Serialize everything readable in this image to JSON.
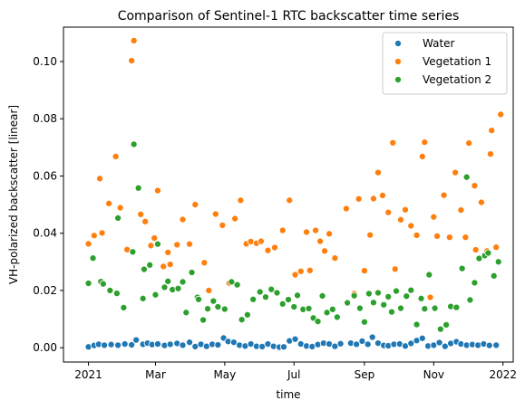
{
  "chart_data": {
    "type": "scatter",
    "title": "Comparison of Sentinel-1 RTC backscatter time series",
    "xlabel": "time",
    "ylabel": "VH-polarized backscatter [linear]",
    "xlim": [
      "2020-12-10",
      "2022-01-10"
    ],
    "ylim": [
      -0.005,
      0.112
    ],
    "x_ticks": [
      {
        "date": "2021-01-01",
        "label": "2021"
      },
      {
        "date": "2021-03-01",
        "label": "Mar"
      },
      {
        "date": "2021-05-01",
        "label": "May"
      },
      {
        "date": "2021-07-01",
        "label": "Jul"
      },
      {
        "date": "2021-09-01",
        "label": "Sep"
      },
      {
        "date": "2021-11-01",
        "label": "Nov"
      },
      {
        "date": "2022-01-01",
        "label": "2022"
      }
    ],
    "y_ticks": [
      {
        "value": 0.0,
        "label": "0.00"
      },
      {
        "value": 0.02,
        "label": "0.02"
      },
      {
        "value": 0.04,
        "label": "0.04"
      },
      {
        "value": 0.06,
        "label": "0.06"
      },
      {
        "value": 0.08,
        "label": "0.08"
      },
      {
        "value": 0.1,
        "label": "0.10"
      }
    ],
    "grid": false,
    "legend_position": "top-right",
    "series": [
      {
        "name": "Water",
        "color": "#1f77b4",
        "points": [
          [
            "2021-01-01",
            0.0003
          ],
          [
            "2021-01-06",
            0.0008
          ],
          [
            "2021-01-10",
            0.0012
          ],
          [
            "2021-01-15",
            0.0009
          ],
          [
            "2021-01-21",
            0.0011
          ],
          [
            "2021-01-27",
            0.0009
          ],
          [
            "2021-02-02",
            0.0013
          ],
          [
            "2021-02-08",
            0.001
          ],
          [
            "2021-02-12",
            0.0027
          ],
          [
            "2021-02-18",
            0.0012
          ],
          [
            "2021-02-22",
            0.0016
          ],
          [
            "2021-02-26",
            0.0011
          ],
          [
            "2021-03-03",
            0.0013
          ],
          [
            "2021-03-09",
            0.0008
          ],
          [
            "2021-03-14",
            0.0012
          ],
          [
            "2021-03-20",
            0.0015
          ],
          [
            "2021-03-25",
            0.0009
          ],
          [
            "2021-03-31",
            0.0019
          ],
          [
            "2021-04-05",
            0.0004
          ],
          [
            "2021-04-10",
            0.0012
          ],
          [
            "2021-04-15",
            0.0005
          ],
          [
            "2021-04-20",
            0.0012
          ],
          [
            "2021-04-25",
            0.001
          ],
          [
            "2021-04-30",
            0.0034
          ],
          [
            "2021-05-04",
            0.0022
          ],
          [
            "2021-05-09",
            0.0019
          ],
          [
            "2021-05-14",
            0.0009
          ],
          [
            "2021-05-19",
            0.0006
          ],
          [
            "2021-05-24",
            0.0013
          ],
          [
            "2021-05-29",
            0.0005
          ],
          [
            "2021-06-03",
            0.0004
          ],
          [
            "2021-06-08",
            0.0013
          ],
          [
            "2021-06-13",
            0.0005
          ],
          [
            "2021-06-18",
            0.0002
          ],
          [
            "2021-06-22",
            0.0003
          ],
          [
            "2021-06-27",
            0.0024
          ],
          [
            "2021-07-02",
            0.003
          ],
          [
            "2021-07-07",
            0.0013
          ],
          [
            "2021-07-12",
            0.0006
          ],
          [
            "2021-07-17",
            0.0004
          ],
          [
            "2021-07-22",
            0.0011
          ],
          [
            "2021-07-27",
            0.0016
          ],
          [
            "2021-08-01",
            0.0013
          ],
          [
            "2021-08-06",
            0.0005
          ],
          [
            "2021-08-11",
            0.0014
          ],
          [
            "2021-08-20",
            0.0016
          ],
          [
            "2021-08-25",
            0.0012
          ],
          [
            "2021-08-30",
            0.0023
          ],
          [
            "2021-09-04",
            0.0012
          ],
          [
            "2021-09-08",
            0.0037
          ],
          [
            "2021-09-13",
            0.0016
          ],
          [
            "2021-09-18",
            0.0008
          ],
          [
            "2021-09-22",
            0.0007
          ],
          [
            "2021-09-27",
            0.0012
          ],
          [
            "2021-10-02",
            0.0013
          ],
          [
            "2021-10-07",
            0.0006
          ],
          [
            "2021-10-12",
            0.0015
          ],
          [
            "2021-10-17",
            0.0025
          ],
          [
            "2021-10-22",
            0.0033
          ],
          [
            "2021-10-27",
            0.0006
          ],
          [
            "2021-11-01",
            0.0009
          ],
          [
            "2021-11-06",
            0.0018
          ],
          [
            "2021-11-11",
            0.0005
          ],
          [
            "2021-11-16",
            0.0015
          ],
          [
            "2021-11-21",
            0.0021
          ],
          [
            "2021-11-25",
            0.0013
          ],
          [
            "2021-11-30",
            0.0009
          ],
          [
            "2021-12-05",
            0.0011
          ],
          [
            "2021-12-10",
            0.0009
          ],
          [
            "2021-12-15",
            0.0013
          ],
          [
            "2021-12-20",
            0.0008
          ],
          [
            "2021-12-26",
            0.0009
          ]
        ]
      },
      {
        "name": "Vegetation 1",
        "color": "#ff7f0e",
        "points": [
          [
            "2021-01-01",
            0.0363
          ],
          [
            "2021-01-06",
            0.0392
          ],
          [
            "2021-01-11",
            0.0591
          ],
          [
            "2021-01-13",
            0.0401
          ],
          [
            "2021-01-19",
            0.0504
          ],
          [
            "2021-01-25",
            0.0668
          ],
          [
            "2021-01-29",
            0.0489
          ],
          [
            "2021-02-04",
            0.0343
          ],
          [
            "2021-02-08",
            0.1003
          ],
          [
            "2021-02-10",
            0.1073
          ],
          [
            "2021-02-16",
            0.0466
          ],
          [
            "2021-02-20",
            0.0441
          ],
          [
            "2021-02-25",
            0.0357
          ],
          [
            "2021-02-28",
            0.0383
          ],
          [
            "2021-03-03",
            0.0549
          ],
          [
            "2021-03-08",
            0.0284
          ],
          [
            "2021-03-12",
            0.0333
          ],
          [
            "2021-03-14",
            0.0291
          ],
          [
            "2021-03-20",
            0.036
          ],
          [
            "2021-03-25",
            0.0448
          ],
          [
            "2021-03-31",
            0.0362
          ],
          [
            "2021-04-05",
            0.05
          ],
          [
            "2021-04-13",
            0.0297
          ],
          [
            "2021-04-17",
            0.02
          ],
          [
            "2021-04-23",
            0.0467
          ],
          [
            "2021-04-29",
            0.0428
          ],
          [
            "2021-05-05",
            0.0226
          ],
          [
            "2021-05-10",
            0.0451
          ],
          [
            "2021-05-15",
            0.0515
          ],
          [
            "2021-05-20",
            0.0363
          ],
          [
            "2021-05-24",
            0.0371
          ],
          [
            "2021-05-29",
            0.0365
          ],
          [
            "2021-06-02",
            0.0372
          ],
          [
            "2021-06-08",
            0.034
          ],
          [
            "2021-06-14",
            0.035
          ],
          [
            "2021-06-21",
            0.041
          ],
          [
            "2021-06-27",
            0.0515
          ],
          [
            "2021-07-02",
            0.0255
          ],
          [
            "2021-07-07",
            0.0267
          ],
          [
            "2021-07-12",
            0.0404
          ],
          [
            "2021-07-15",
            0.027
          ],
          [
            "2021-07-20",
            0.041
          ],
          [
            "2021-07-24",
            0.0372
          ],
          [
            "2021-07-28",
            0.0338
          ],
          [
            "2021-08-01",
            0.0398
          ],
          [
            "2021-08-06",
            0.0313
          ],
          [
            "2021-08-16",
            0.0486
          ],
          [
            "2021-08-23",
            0.0189
          ],
          [
            "2021-08-27",
            0.052
          ],
          [
            "2021-09-01",
            0.0269
          ],
          [
            "2021-09-06",
            0.0394
          ],
          [
            "2021-09-09",
            0.0521
          ],
          [
            "2021-09-13",
            0.0612
          ],
          [
            "2021-09-17",
            0.0532
          ],
          [
            "2021-09-22",
            0.0473
          ],
          [
            "2021-09-26",
            0.0716
          ],
          [
            "2021-09-28",
            0.0275
          ],
          [
            "2021-10-03",
            0.0447
          ],
          [
            "2021-10-07",
            0.0482
          ],
          [
            "2021-10-12",
            0.0426
          ],
          [
            "2021-10-17",
            0.0393
          ],
          [
            "2021-10-22",
            0.0668
          ],
          [
            "2021-10-24",
            0.0718
          ],
          [
            "2021-10-29",
            0.0176
          ],
          [
            "2021-11-01",
            0.0457
          ],
          [
            "2021-11-04",
            0.039
          ],
          [
            "2021-11-10",
            0.0533
          ],
          [
            "2021-11-15",
            0.0386
          ],
          [
            "2021-11-20",
            0.0612
          ],
          [
            "2021-11-25",
            0.0481
          ],
          [
            "2021-11-29",
            0.0386
          ],
          [
            "2021-12-02",
            0.0715
          ],
          [
            "2021-12-07",
            0.0566
          ],
          [
            "2021-12-08",
            0.0342
          ],
          [
            "2021-12-13",
            0.0508
          ],
          [
            "2021-12-18",
            0.0338
          ],
          [
            "2021-12-21",
            0.0677
          ],
          [
            "2021-12-22",
            0.0759
          ],
          [
            "2021-12-26",
            0.0351
          ],
          [
            "2021-12-30",
            0.0815
          ]
        ]
      },
      {
        "name": "Vegetation 2",
        "color": "#2ca02c",
        "points": [
          [
            "2021-01-01",
            0.0225
          ],
          [
            "2021-01-05",
            0.0313
          ],
          [
            "2021-01-12",
            0.0231
          ],
          [
            "2021-01-14",
            0.0223
          ],
          [
            "2021-01-20",
            0.02
          ],
          [
            "2021-01-26",
            0.019
          ],
          [
            "2021-01-27",
            0.0453
          ],
          [
            "2021-02-01",
            0.014
          ],
          [
            "2021-02-09",
            0.0335
          ],
          [
            "2021-02-10",
            0.0711
          ],
          [
            "2021-02-14",
            0.0558
          ],
          [
            "2021-02-18",
            0.0172
          ],
          [
            "2021-02-19",
            0.0274
          ],
          [
            "2021-02-24",
            0.0289
          ],
          [
            "2021-03-01",
            0.0185
          ],
          [
            "2021-03-03",
            0.0362
          ],
          [
            "2021-03-09",
            0.0211
          ],
          [
            "2021-03-12",
            0.0232
          ],
          [
            "2021-03-16",
            0.0203
          ],
          [
            "2021-03-21",
            0.0207
          ],
          [
            "2021-03-25",
            0.023
          ],
          [
            "2021-03-28",
            0.0123
          ],
          [
            "2021-04-02",
            0.0263
          ],
          [
            "2021-04-07",
            0.0176
          ],
          [
            "2021-04-08",
            0.0169
          ],
          [
            "2021-04-12",
            0.0097
          ],
          [
            "2021-04-16",
            0.0136
          ],
          [
            "2021-04-21",
            0.0163
          ],
          [
            "2021-04-25",
            0.0143
          ],
          [
            "2021-05-01",
            0.0135
          ],
          [
            "2021-05-07",
            0.023
          ],
          [
            "2021-05-12",
            0.022
          ],
          [
            "2021-05-16",
            0.0098
          ],
          [
            "2021-05-21",
            0.0115
          ],
          [
            "2021-05-26",
            0.0169
          ],
          [
            "2021-06-01",
            0.0195
          ],
          [
            "2021-06-06",
            0.0177
          ],
          [
            "2021-06-11",
            0.0204
          ],
          [
            "2021-06-16",
            0.0192
          ],
          [
            "2021-06-21",
            0.0153
          ],
          [
            "2021-06-26",
            0.0168
          ],
          [
            "2021-07-01",
            0.0143
          ],
          [
            "2021-07-04",
            0.0183
          ],
          [
            "2021-07-09",
            0.0134
          ],
          [
            "2021-07-14",
            0.0137
          ],
          [
            "2021-07-18",
            0.0104
          ],
          [
            "2021-07-22",
            0.0092
          ],
          [
            "2021-07-26",
            0.0181
          ],
          [
            "2021-07-30",
            0.0123
          ],
          [
            "2021-08-04",
            0.0134
          ],
          [
            "2021-08-08",
            0.0107
          ],
          [
            "2021-08-17",
            0.0157
          ],
          [
            "2021-08-23",
            0.0182
          ],
          [
            "2021-08-28",
            0.0138
          ],
          [
            "2021-09-01",
            0.009
          ],
          [
            "2021-09-05",
            0.0189
          ],
          [
            "2021-09-09",
            0.0158
          ],
          [
            "2021-09-13",
            0.0192
          ],
          [
            "2021-09-18",
            0.015
          ],
          [
            "2021-09-22",
            0.0178
          ],
          [
            "2021-09-25",
            0.0125
          ],
          [
            "2021-09-29",
            0.0198
          ],
          [
            "2021-10-03",
            0.0138
          ],
          [
            "2021-10-08",
            0.018
          ],
          [
            "2021-10-12",
            0.0201
          ],
          [
            "2021-10-17",
            0.0081
          ],
          [
            "2021-10-21",
            0.0172
          ],
          [
            "2021-10-24",
            0.0136
          ],
          [
            "2021-10-28",
            0.0255
          ],
          [
            "2021-11-02",
            0.0138
          ],
          [
            "2021-11-07",
            0.0065
          ],
          [
            "2021-11-12",
            0.008
          ],
          [
            "2021-11-16",
            0.0144
          ],
          [
            "2021-11-21",
            0.0141
          ],
          [
            "2021-11-26",
            0.0277
          ],
          [
            "2021-11-30",
            0.0596
          ],
          [
            "2021-12-03",
            0.0167
          ],
          [
            "2021-12-07",
            0.0227
          ],
          [
            "2021-12-11",
            0.0312
          ],
          [
            "2021-12-16",
            0.0322
          ],
          [
            "2021-12-19",
            0.0331
          ],
          [
            "2021-12-24",
            0.0251
          ],
          [
            "2021-12-28",
            0.03
          ]
        ]
      }
    ]
  }
}
